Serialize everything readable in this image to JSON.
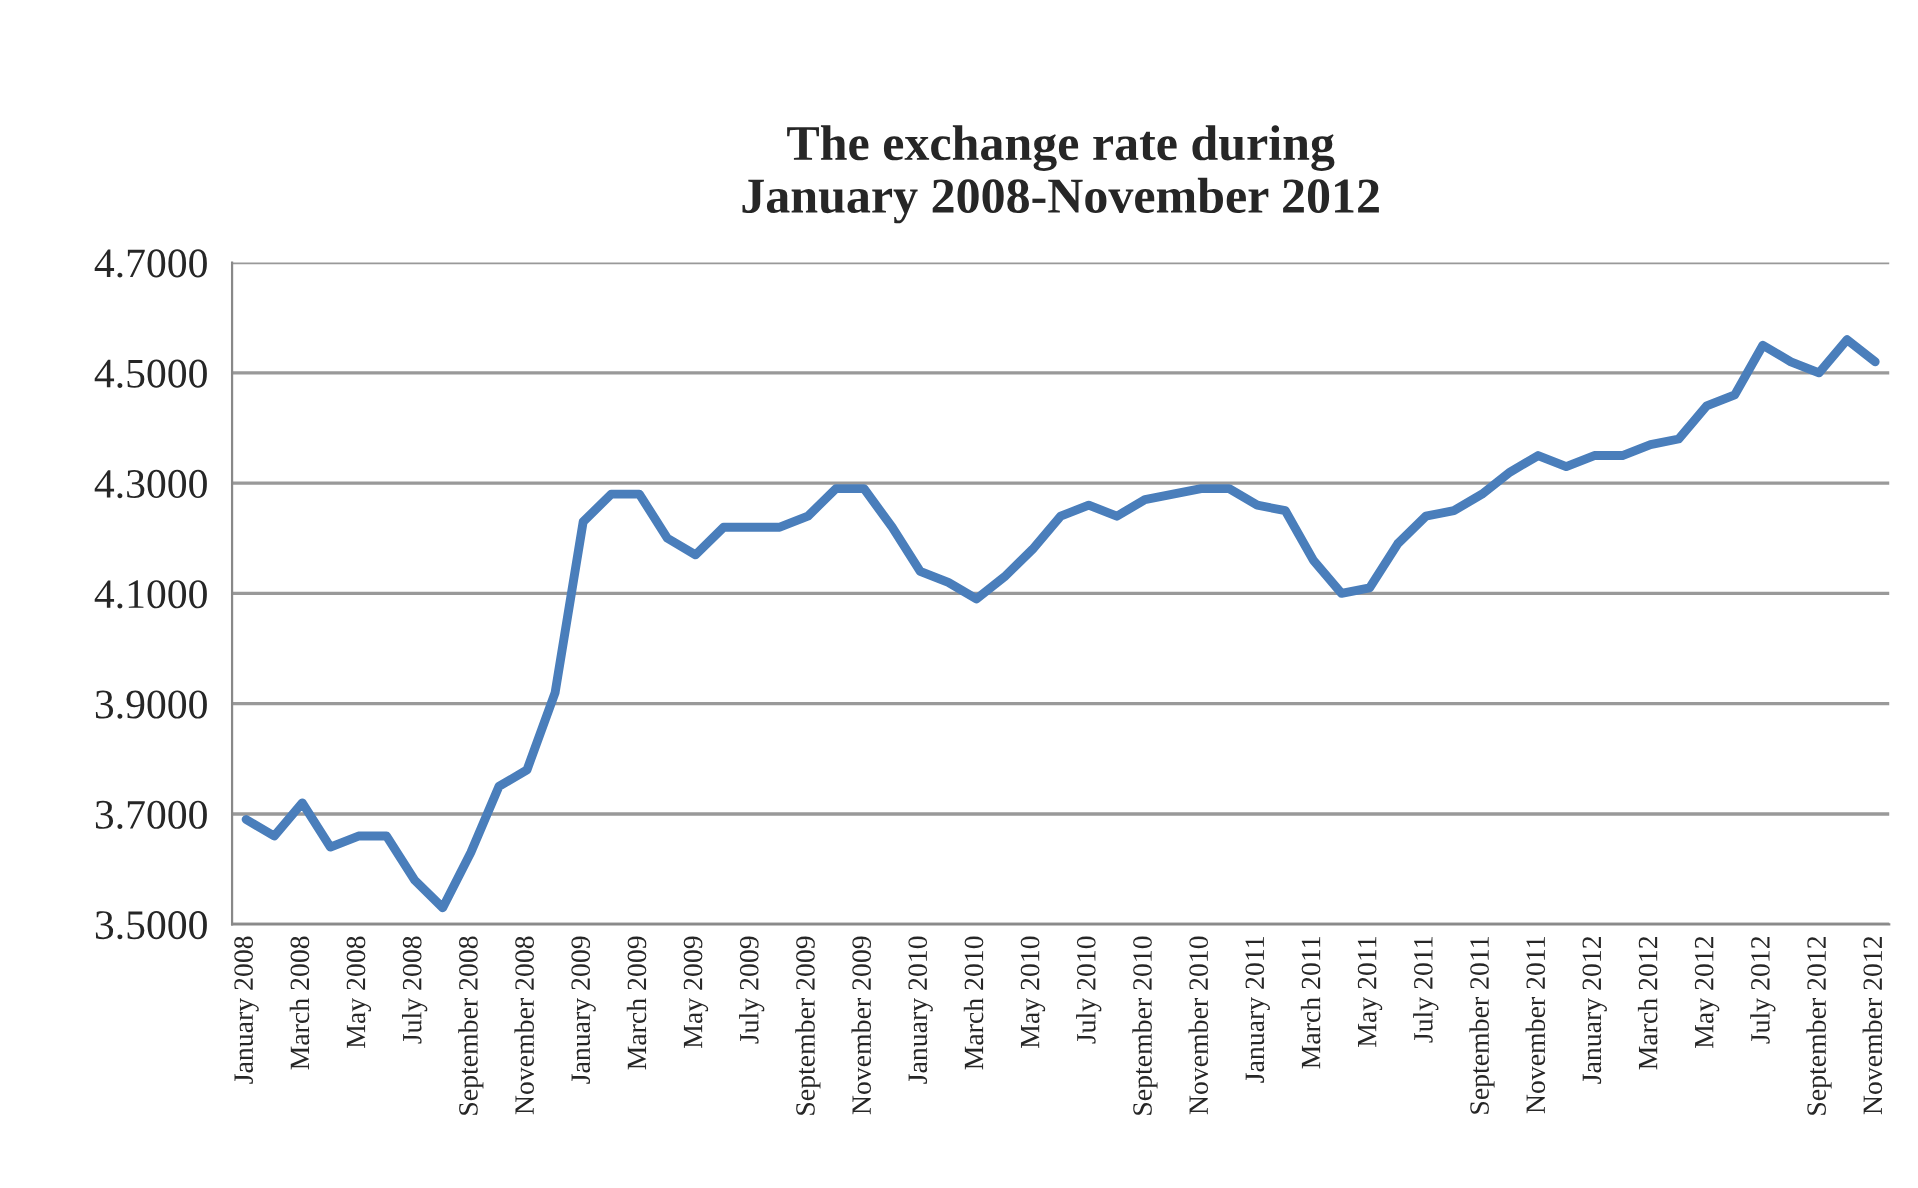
{
  "chart_data": {
    "type": "line",
    "title": "The exchange rate during\nJanuary 2008-November 2012",
    "categories": [
      "January 2008",
      null,
      "March 2008",
      null,
      "May 2008",
      null,
      "July 2008",
      null,
      "September 2008",
      null,
      "November 2008",
      null,
      "January 2009",
      null,
      "March 2009",
      null,
      "May 2009",
      null,
      "July 2009",
      null,
      "September 2009",
      null,
      "November 2009",
      null,
      "January 2010",
      null,
      "March 2010",
      null,
      "May 2010",
      null,
      "July 2010",
      null,
      "September 2010",
      null,
      "November 2010",
      null,
      "January 2011",
      null,
      "March 2011",
      null,
      "May 2011",
      null,
      "July 2011",
      null,
      "September 2011",
      null,
      "November 2011",
      null,
      "January 2012",
      null,
      "March 2012",
      null,
      "May 2012",
      null,
      "July 2012",
      null,
      "September 2012",
      null,
      "November 2012"
    ],
    "series": [
      {
        "color": "#4a7ebb",
        "values": [
          3.69,
          3.66,
          3.72,
          3.64,
          3.66,
          3.66,
          3.58,
          3.53,
          3.63,
          3.75,
          3.78,
          3.92,
          4.23,
          4.28,
          4.28,
          4.2,
          4.17,
          4.22,
          4.22,
          4.22,
          4.24,
          4.29,
          4.29,
          4.22,
          4.14,
          4.12,
          4.09,
          4.13,
          4.18,
          4.24,
          4.26,
          4.24,
          4.27,
          4.28,
          4.29,
          4.29,
          4.26,
          4.25,
          4.16,
          4.1,
          4.11,
          4.19,
          4.24,
          4.25,
          4.28,
          4.32,
          4.35,
          4.33,
          4.35,
          4.35,
          4.37,
          4.38,
          4.44,
          4.46,
          4.55,
          4.52,
          4.5,
          4.56,
          4.52
        ]
      }
    ],
    "ylim": [
      3.5,
      4.7
    ],
    "yticks": [
      {
        "value": 3.5,
        "label": "3.5000"
      },
      {
        "value": 3.7,
        "label": "3.7000"
      },
      {
        "value": 3.9,
        "label": "3.9000"
      },
      {
        "value": 4.1,
        "label": "4.1000"
      },
      {
        "value": 4.3,
        "label": "4.3000"
      },
      {
        "value": 4.5,
        "label": "4.5000"
      },
      {
        "value": 4.7,
        "label": "4.7000"
      }
    ],
    "grid": "y",
    "legend": false,
    "marker": "none",
    "line_style": "solid"
  }
}
